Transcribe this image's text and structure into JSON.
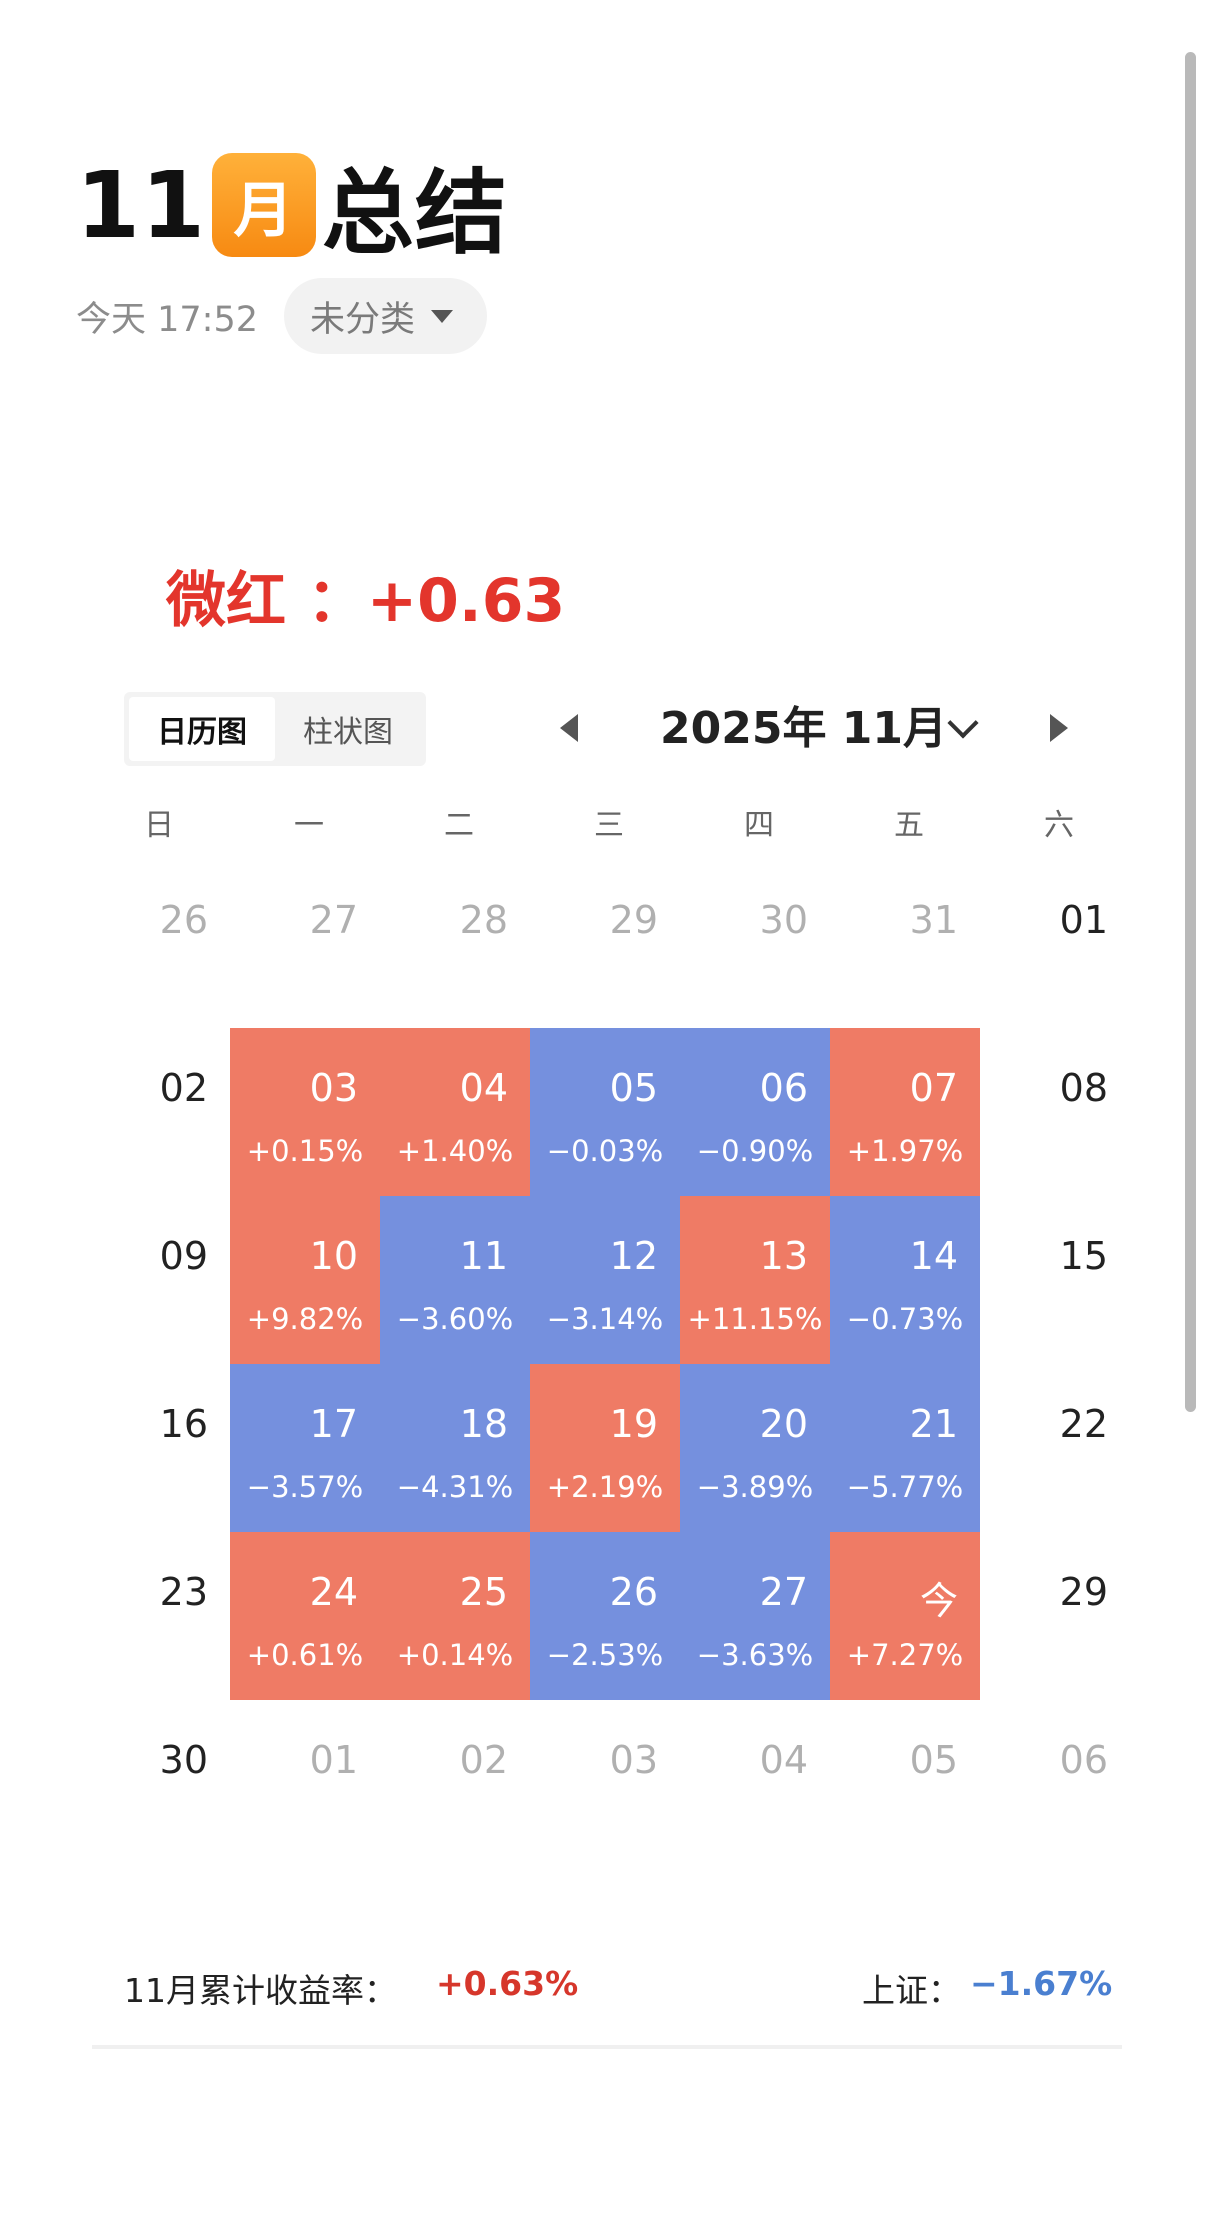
{
  "header": {
    "title_num": "11",
    "title_badge": "月",
    "title_suffix": "总结",
    "date": "今天 17:52",
    "category": "未分类"
  },
  "headline": "微红 ：+0.63",
  "view_toggle": {
    "calendar": "日历图",
    "bar": "柱状图"
  },
  "month_nav": {
    "label": "2025年 11月"
  },
  "weekdays": [
    "日",
    "一",
    "二",
    "三",
    "四",
    "五",
    "六"
  ],
  "calendar": {
    "weeks": [
      [
        {
          "d": "26",
          "s": "outside"
        },
        {
          "d": "27",
          "s": "outside"
        },
        {
          "d": "28",
          "s": "outside"
        },
        {
          "d": "29",
          "s": "outside"
        },
        {
          "d": "30",
          "s": "outside"
        },
        {
          "d": "31",
          "s": "outside"
        },
        {
          "d": "01",
          "s": "plain"
        }
      ],
      [
        {
          "d": "02",
          "s": "plain"
        },
        {
          "d": "03",
          "s": "up",
          "c": "+0.15%"
        },
        {
          "d": "04",
          "s": "up",
          "c": "+1.40%"
        },
        {
          "d": "05",
          "s": "down",
          "c": "−0.03%"
        },
        {
          "d": "06",
          "s": "down",
          "c": "−0.90%"
        },
        {
          "d": "07",
          "s": "up",
          "c": "+1.97%"
        },
        {
          "d": "08",
          "s": "plain"
        }
      ],
      [
        {
          "d": "09",
          "s": "plain"
        },
        {
          "d": "10",
          "s": "up",
          "c": "+9.82%"
        },
        {
          "d": "11",
          "s": "down",
          "c": "−3.60%"
        },
        {
          "d": "12",
          "s": "down",
          "c": "−3.14%"
        },
        {
          "d": "13",
          "s": "up",
          "c": "+11.15%"
        },
        {
          "d": "14",
          "s": "down",
          "c": "−0.73%"
        },
        {
          "d": "15",
          "s": "plain"
        }
      ],
      [
        {
          "d": "16",
          "s": "plain"
        },
        {
          "d": "17",
          "s": "down",
          "c": "−3.57%"
        },
        {
          "d": "18",
          "s": "down",
          "c": "−4.31%"
        },
        {
          "d": "19",
          "s": "up",
          "c": "+2.19%"
        },
        {
          "d": "20",
          "s": "down",
          "c": "−3.89%"
        },
        {
          "d": "21",
          "s": "down",
          "c": "−5.77%"
        },
        {
          "d": "22",
          "s": "plain"
        }
      ],
      [
        {
          "d": "23",
          "s": "plain"
        },
        {
          "d": "24",
          "s": "up",
          "c": "+0.61%"
        },
        {
          "d": "25",
          "s": "up",
          "c": "+0.14%"
        },
        {
          "d": "26",
          "s": "down",
          "c": "−2.53%"
        },
        {
          "d": "27",
          "s": "down",
          "c": "−3.63%"
        },
        {
          "d": "今",
          "s": "up",
          "c": "+7.27%"
        },
        {
          "d": "29",
          "s": "plain"
        }
      ],
      [
        {
          "d": "30",
          "s": "plain"
        },
        {
          "d": "01",
          "s": "outside"
        },
        {
          "d": "02",
          "s": "outside"
        },
        {
          "d": "03",
          "s": "outside"
        },
        {
          "d": "04",
          "s": "outside"
        },
        {
          "d": "05",
          "s": "outside"
        },
        {
          "d": "06",
          "s": "outside"
        }
      ]
    ]
  },
  "summary": {
    "label": "11月累计收益率：",
    "value": "+0.63%",
    "index_label": "上证：",
    "index_value": "−1.67%"
  },
  "colors": {
    "up": "#ef7b65",
    "down": "#7590de",
    "accent_red": "#e3352c",
    "accent_blue": "#4a7fd0",
    "badge": "#f78a12"
  }
}
